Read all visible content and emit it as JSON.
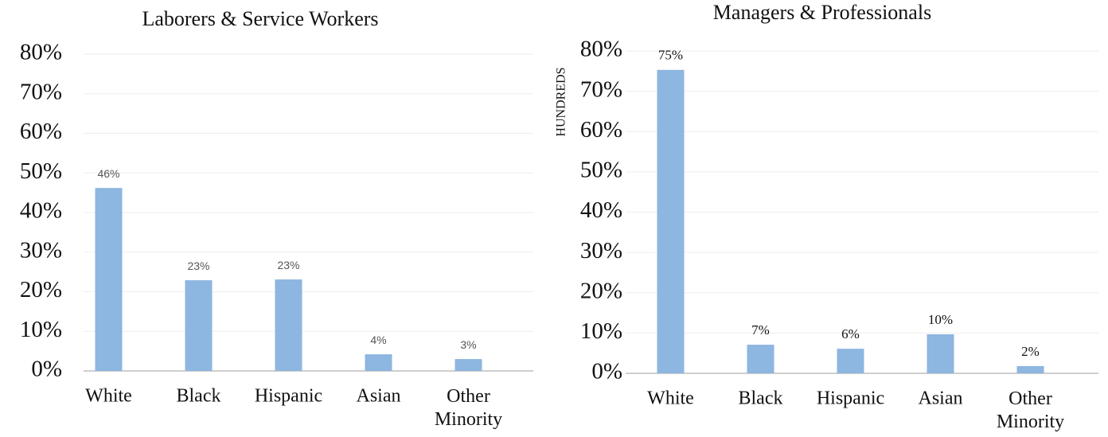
{
  "chart_data": [
    {
      "type": "bar",
      "title": "Laborers & Service Workers",
      "categories": [
        "White",
        "Black",
        "Hispanic",
        "Asian",
        "Other Minority"
      ],
      "values": [
        46.2,
        22.9,
        23.1,
        4.2,
        3.0
      ],
      "value_labels": [
        "46%",
        "23%",
        "23%",
        "4%",
        "3%"
      ],
      "color": "#8db6e0",
      "ylim": [
        0,
        80
      ],
      "yticks": [
        {
          "value": 0,
          "label": "0%"
        },
        {
          "value": 10,
          "label": "10%"
        },
        {
          "value": 20,
          "label": "20%"
        },
        {
          "value": 30,
          "label": "30%"
        },
        {
          "value": 40,
          "label": "40%"
        },
        {
          "value": 50,
          "label": "50%"
        },
        {
          "value": 60,
          "label": "60%"
        },
        {
          "value": 70,
          "label": "70%"
        },
        {
          "value": 80,
          "label": "80%"
        }
      ],
      "grid": true
    },
    {
      "type": "bar",
      "title": "Managers & Professionals",
      "ylabel": "HUNDREDS",
      "categories": [
        "White",
        "Black",
        "Hispanic",
        "Asian",
        "Other Minority"
      ],
      "values": [
        75.3,
        7.1,
        6.1,
        9.7,
        1.8
      ],
      "value_labels": [
        "75%",
        "7%",
        "6%",
        "10%",
        "2%"
      ],
      "color": "#8db6e0",
      "ylim": [
        0,
        80
      ],
      "yticks": [
        {
          "value": 0,
          "label": "0%"
        },
        {
          "value": 10,
          "label": "10%"
        },
        {
          "value": 20,
          "label": "20%"
        },
        {
          "value": 30,
          "label": "30%"
        },
        {
          "value": 40,
          "label": "40%"
        },
        {
          "value": 50,
          "label": "50%"
        },
        {
          "value": 60,
          "label": "60%"
        },
        {
          "value": 70,
          "label": "70%"
        },
        {
          "value": 80,
          "label": "80%"
        }
      ],
      "grid": true
    }
  ]
}
